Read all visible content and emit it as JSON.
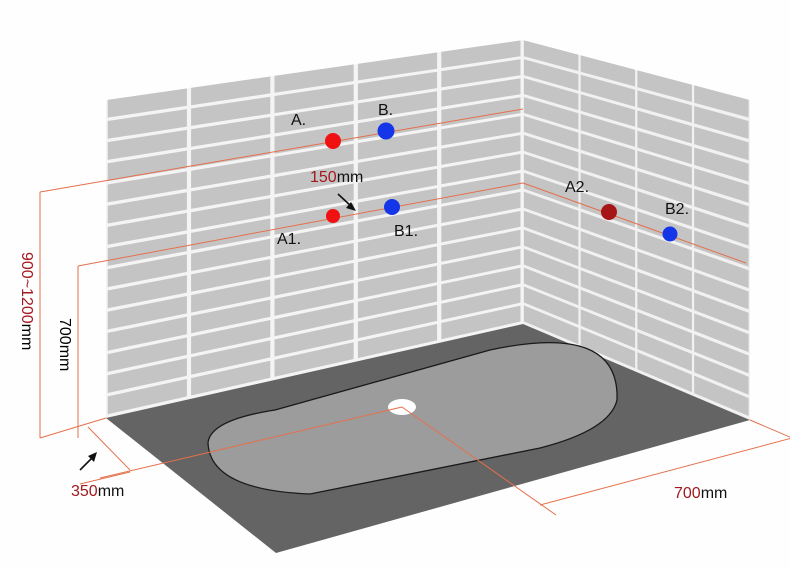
{
  "points": {
    "a": "A.",
    "b": "B.",
    "a1": "A1.",
    "b1": "B1.",
    "a2": "A2.",
    "b2": "B2."
  },
  "dimensions": {
    "spacing": {
      "value": "150",
      "unit": "mm"
    },
    "upper_height": {
      "value": "900~1200",
      "unit": "mm"
    },
    "lower_height": {
      "value": "700",
      "unit": "mm"
    },
    "drain_offset": {
      "value": "350",
      "unit": "mm"
    },
    "drain_depth": {
      "value": "700",
      "unit": "mm"
    }
  },
  "colors": {
    "hot_valve": "#f01212",
    "hot_valve_side": "#a61616",
    "cold_valve": "#1436e8",
    "guide_line": "#e4704c",
    "dimension_text": "#a2191f",
    "tile": "#c4c4c4",
    "grout": "#f4f4f4",
    "floor": "#646464",
    "tray": "#9c9c9c"
  }
}
